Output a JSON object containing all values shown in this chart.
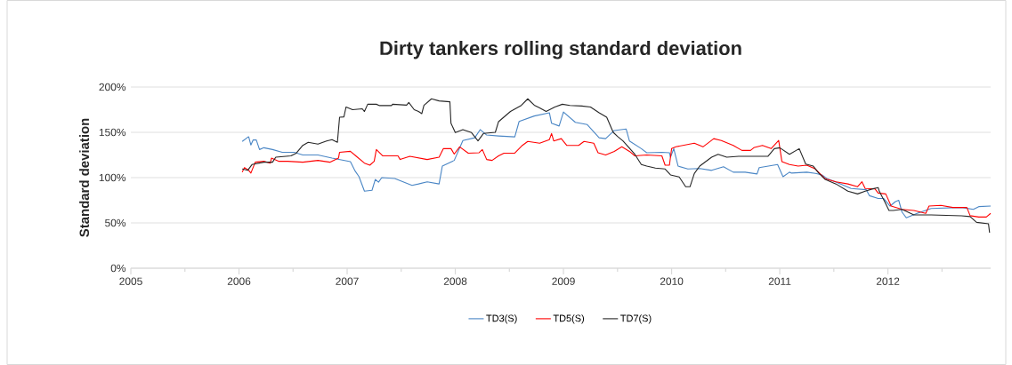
{
  "chart_data": {
    "type": "line",
    "title": "Dirty tankers rolling standard deviation",
    "ylabel": "Standard deviation",
    "xlim": [
      2005,
      2012.95
    ],
    "ylim": [
      0,
      200
    ],
    "xticks": [
      2005,
      {
        "value": 2005.5,
        "label": null
      },
      2006,
      {
        "value": 2006.5,
        "label": null
      },
      2007,
      {
        "value": 2007.5,
        "label": null
      },
      2008,
      {
        "value": 2008.5,
        "label": null
      },
      2009,
      {
        "value": 2009.5,
        "label": null
      },
      2010,
      {
        "value": 2010.5,
        "label": null
      },
      2011,
      {
        "value": 2011.5,
        "label": null
      },
      2012,
      {
        "value": 2012.5,
        "label": null
      }
    ],
    "yticks": [
      {
        "value": 0,
        "label": "0%"
      },
      {
        "value": 50,
        "label": "50%"
      },
      {
        "value": 100,
        "label": "100%"
      },
      {
        "value": 150,
        "label": "150%"
      },
      {
        "value": 200,
        "label": "200%"
      }
    ],
    "grid": "y",
    "legend": "bottom",
    "line_style": "solid",
    "series": [
      {
        "name": "TD3(S)",
        "color": "#4a86c5",
        "x": [
          2006.03,
          2006.08,
          2006.09,
          2006.11,
          2006.13,
          2006.16,
          2006.19,
          2006.23,
          2006.31,
          2006.4,
          2006.51,
          2006.59,
          2006.73,
          2006.86,
          2007.03,
          2007.07,
          2007.11,
          2007.16,
          2007.23,
          2007.26,
          2007.29,
          2007.32,
          2007.44,
          2007.6,
          2007.66,
          2007.74,
          2007.85,
          2007.88,
          2007.99,
          2008.07,
          2008.18,
          2008.23,
          2008.29,
          2008.4,
          2008.55,
          2008.59,
          2008.73,
          2008.87,
          2008.89,
          2008.96,
          2009.0,
          2009.11,
          2009.22,
          2009.33,
          2009.39,
          2009.47,
          2009.58,
          2009.61,
          2009.72,
          2009.77,
          2009.91,
          2009.98,
          2009.99,
          2010.02,
          2010.06,
          2010.15,
          2010.26,
          2010.37,
          2010.48,
          2010.57,
          2010.68,
          2010.79,
          2010.81,
          2010.98,
          2011.03,
          2011.09,
          2011.11,
          2011.25,
          2011.33,
          2011.39,
          2011.44,
          2011.52,
          2011.66,
          2011.8,
          2011.83,
          2011.91,
          2011.96,
          2012.02,
          2012.07,
          2012.1,
          2012.13,
          2012.17,
          2012.27,
          2012.4,
          2012.68,
          2012.79,
          2012.84,
          2012.95
        ],
        "values": [
          140,
          144.5,
          145,
          136,
          141.5,
          141.5,
          131,
          133,
          131,
          128,
          128,
          125,
          125,
          121.5,
          117.6,
          108,
          101,
          85,
          86,
          98,
          95,
          100,
          99,
          91.5,
          93,
          95.4,
          93,
          112.7,
          119,
          141,
          144,
          153,
          147,
          146,
          145,
          162,
          168,
          171.6,
          160,
          157,
          172.5,
          161,
          158.5,
          144,
          143,
          152,
          153.6,
          140.5,
          132,
          127.5,
          128,
          127.5,
          122.5,
          132,
          112.7,
          109.5,
          110,
          108,
          112,
          106,
          106,
          104,
          111,
          114.4,
          101,
          106,
          105,
          106,
          104.6,
          103,
          98.7,
          95,
          88,
          86.6,
          80,
          77,
          77,
          68.6,
          73.5,
          75,
          62,
          55.6,
          60.5,
          66,
          67,
          65,
          68,
          68.6
        ]
      },
      {
        "name": "TD5(S)",
        "color": "#ff0000",
        "x": [
          2006.03,
          2006.05,
          2006.09,
          2006.11,
          2006.15,
          2006.23,
          2006.29,
          2006.3,
          2006.37,
          2006.45,
          2006.59,
          2006.73,
          2006.84,
          2006.92,
          2006.93,
          2007.03,
          2007.08,
          2007.16,
          2007.21,
          2007.25,
          2007.27,
          2007.33,
          2007.47,
          2007.49,
          2007.58,
          2007.74,
          2007.85,
          2007.89,
          2007.96,
          2007.99,
          2008.04,
          2008.12,
          2008.22,
          2008.25,
          2008.29,
          2008.34,
          2008.4,
          2008.45,
          2008.55,
          2008.62,
          2008.67,
          2008.78,
          2008.87,
          2008.89,
          2008.91,
          2008.98,
          2009.03,
          2009.14,
          2009.19,
          2009.28,
          2009.32,
          2009.39,
          2009.47,
          2009.54,
          2009.61,
          2009.66,
          2009.77,
          2009.91,
          2009.94,
          2009.98,
          2010.0,
          2010.04,
          2010.21,
          2010.29,
          2010.39,
          2010.46,
          2010.57,
          2010.65,
          2010.73,
          2010.76,
          2010.84,
          2010.92,
          2010.99,
          2011.02,
          2011.09,
          2011.17,
          2011.25,
          2011.33,
          2011.42,
          2011.52,
          2011.63,
          2011.72,
          2011.76,
          2011.79,
          2011.88,
          2011.91,
          2011.98,
          2012.03,
          2012.13,
          2012.24,
          2012.35,
          2012.38,
          2012.49,
          2012.6,
          2012.73,
          2012.76,
          2012.84,
          2012.91,
          2012.95
        ],
        "values": [
          106,
          111,
          108,
          105,
          117,
          118,
          116,
          121.5,
          118,
          118,
          117,
          119,
          117,
          121.5,
          128,
          129,
          124,
          116,
          113.7,
          118,
          131,
          124,
          124,
          120,
          123.5,
          120,
          122.5,
          132,
          132,
          126,
          134,
          127,
          127.5,
          131,
          120,
          119,
          124,
          127,
          127,
          135.6,
          140,
          138,
          142,
          148.7,
          140.5,
          143,
          135.6,
          135.6,
          140,
          138,
          127.5,
          125,
          129,
          134,
          129,
          124,
          125,
          124,
          113.7,
          113.7,
          132,
          134,
          138,
          134,
          143,
          141,
          135.6,
          130,
          130,
          133,
          135.6,
          132,
          141,
          117.6,
          114.4,
          112.7,
          113.7,
          109.5,
          98.7,
          95.4,
          93,
          90,
          95.4,
          88,
          87.6,
          83,
          82,
          68.6,
          65,
          63.7,
          60.5,
          68.6,
          69.3,
          67,
          67,
          58,
          56.5,
          56.5,
          60.5
        ]
      },
      {
        "name": "TD7(S)",
        "color": "#262626",
        "x": [
          2006.03,
          2006.08,
          2006.12,
          2006.23,
          2006.31,
          2006.34,
          2006.48,
          2006.53,
          2006.59,
          2006.64,
          2006.73,
          2006.81,
          2006.86,
          2006.91,
          2006.93,
          2006.97,
          2006.99,
          2007.05,
          2007.14,
          2007.16,
          2007.19,
          2007.27,
          2007.3,
          2007.41,
          2007.42,
          2007.55,
          2007.57,
          2007.62,
          2007.66,
          2007.69,
          2007.71,
          2007.78,
          2007.85,
          2007.95,
          2007.96,
          2008.0,
          2008.07,
          2008.15,
          2008.21,
          2008.26,
          2008.37,
          2008.4,
          2008.51,
          2008.61,
          2008.67,
          2008.73,
          2008.78,
          2008.84,
          2008.92,
          2008.99,
          2009.06,
          2009.17,
          2009.25,
          2009.33,
          2009.4,
          2009.46,
          2009.5,
          2009.55,
          2009.66,
          2009.72,
          2009.77,
          2009.85,
          2009.94,
          2009.99,
          2010.07,
          2010.13,
          2010.17,
          2010.21,
          2010.26,
          2010.37,
          2010.43,
          2010.51,
          2010.62,
          2010.89,
          2010.95,
          2011.0,
          2011.09,
          2011.18,
          2011.24,
          2011.31,
          2011.36,
          2011.42,
          2011.52,
          2011.63,
          2011.72,
          2011.79,
          2011.86,
          2011.91,
          2011.92,
          2011.97,
          2012.01,
          2012.05,
          2012.13,
          2012.24,
          2012.4,
          2012.68,
          2012.76,
          2012.82,
          2012.93,
          2012.94
        ],
        "values": [
          109.5,
          108,
          114.4,
          117,
          117,
          122.5,
          124,
          127,
          135.6,
          139,
          137,
          140.5,
          142,
          139,
          166.7,
          167,
          178,
          175,
          176,
          173,
          181,
          181,
          179.5,
          179.5,
          181,
          180,
          183,
          175,
          173,
          170.6,
          179.7,
          187,
          184.7,
          183.7,
          160,
          149.7,
          153,
          149.7,
          140.5,
          148.7,
          150,
          161.8,
          173,
          179.7,
          187,
          180,
          177,
          173,
          178,
          181,
          179.7,
          179,
          178,
          171.6,
          166.7,
          150,
          145.4,
          140.5,
          125.8,
          114.4,
          112.7,
          110.5,
          109.5,
          103,
          100.7,
          89.9,
          89.9,
          104.6,
          112.7,
          122.5,
          125.8,
          122.5,
          123.5,
          123.5,
          132,
          133,
          125.8,
          132,
          115,
          112.7,
          105,
          98,
          93,
          85,
          82,
          85,
          87.6,
          89,
          85,
          73.5,
          63.7,
          63.7,
          65,
          58.8,
          58.8,
          57.8,
          57,
          50.6,
          49,
          39.2
        ]
      }
    ]
  }
}
